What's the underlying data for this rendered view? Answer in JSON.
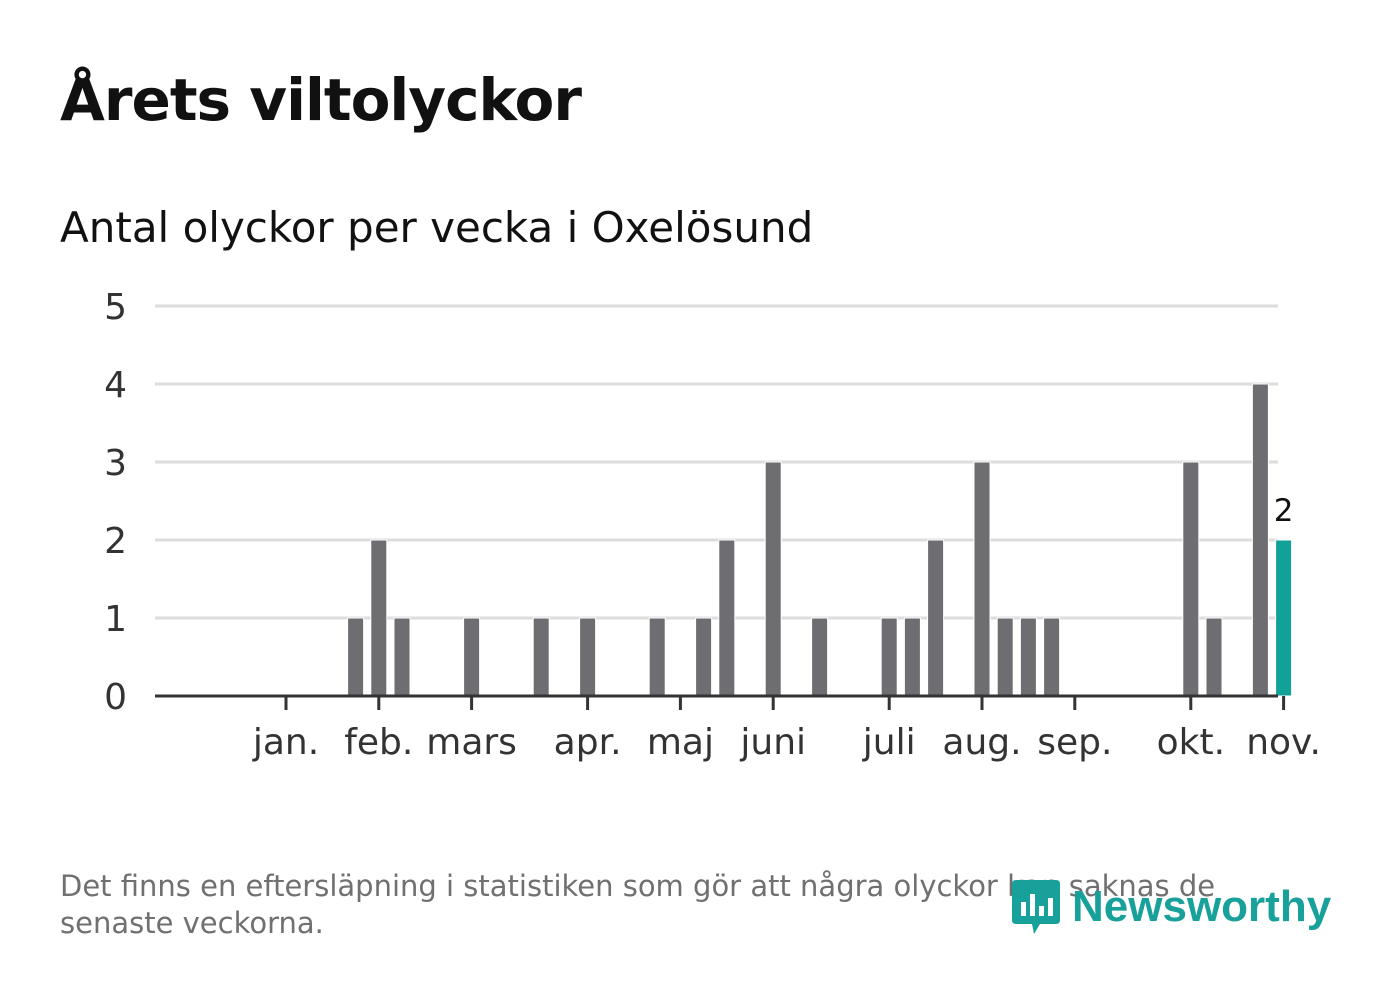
{
  "title": "Årets viltolyckor",
  "subtitle": "Antal olyckor per vecka i Oxelösund",
  "footnote": "Det finns en eftersläpning i statistiken som gör att några olyckor kan saknas de senaste veckorna.",
  "logo": {
    "text": "Newsworthy",
    "icon": "newsworthy-logo-icon"
  },
  "colors": {
    "bar": "#6e6d72",
    "highlight": "#12a197",
    "grid": "#dddddd",
    "axis": "#333333"
  },
  "chart_data": {
    "type": "bar",
    "ylim": [
      0,
      5
    ],
    "yticks": [
      "0",
      "1",
      "2",
      "3",
      "4",
      "5"
    ],
    "xlabel": "",
    "ylabel": "",
    "grid": true,
    "weeks": [
      1,
      2,
      3,
      4,
      5,
      6,
      7,
      8,
      9,
      10,
      11,
      12,
      13,
      14,
      15,
      16,
      17,
      18,
      19,
      20,
      21,
      22,
      23,
      24,
      25,
      26,
      27,
      28,
      29,
      30,
      31,
      32,
      33,
      34,
      35,
      36,
      37,
      38,
      39,
      40,
      41,
      42,
      43,
      44,
      45,
      46
    ],
    "values": [
      0,
      0,
      0,
      0,
      0,
      1,
      2,
      1,
      0,
      0,
      1,
      0,
      0,
      1,
      0,
      1,
      0,
      0,
      1,
      0,
      1,
      2,
      0,
      3,
      0,
      1,
      0,
      0,
      1,
      1,
      2,
      0,
      3,
      1,
      1,
      1,
      0,
      0,
      0,
      0,
      0,
      3,
      1,
      0,
      4,
      2
    ],
    "highlight_index": 45,
    "highlight_label": "2",
    "month_ticks": [
      {
        "label": "jan.",
        "week": 3
      },
      {
        "label": "feb.",
        "week": 7
      },
      {
        "label": "mars",
        "week": 11
      },
      {
        "label": "apr.",
        "week": 16
      },
      {
        "label": "maj",
        "week": 20
      },
      {
        "label": "juni",
        "week": 24
      },
      {
        "label": "juli",
        "week": 29
      },
      {
        "label": "aug.",
        "week": 33
      },
      {
        "label": "sep.",
        "week": 37
      },
      {
        "label": "okt.",
        "week": 42
      },
      {
        "label": "nov.",
        "week": 46
      }
    ]
  }
}
